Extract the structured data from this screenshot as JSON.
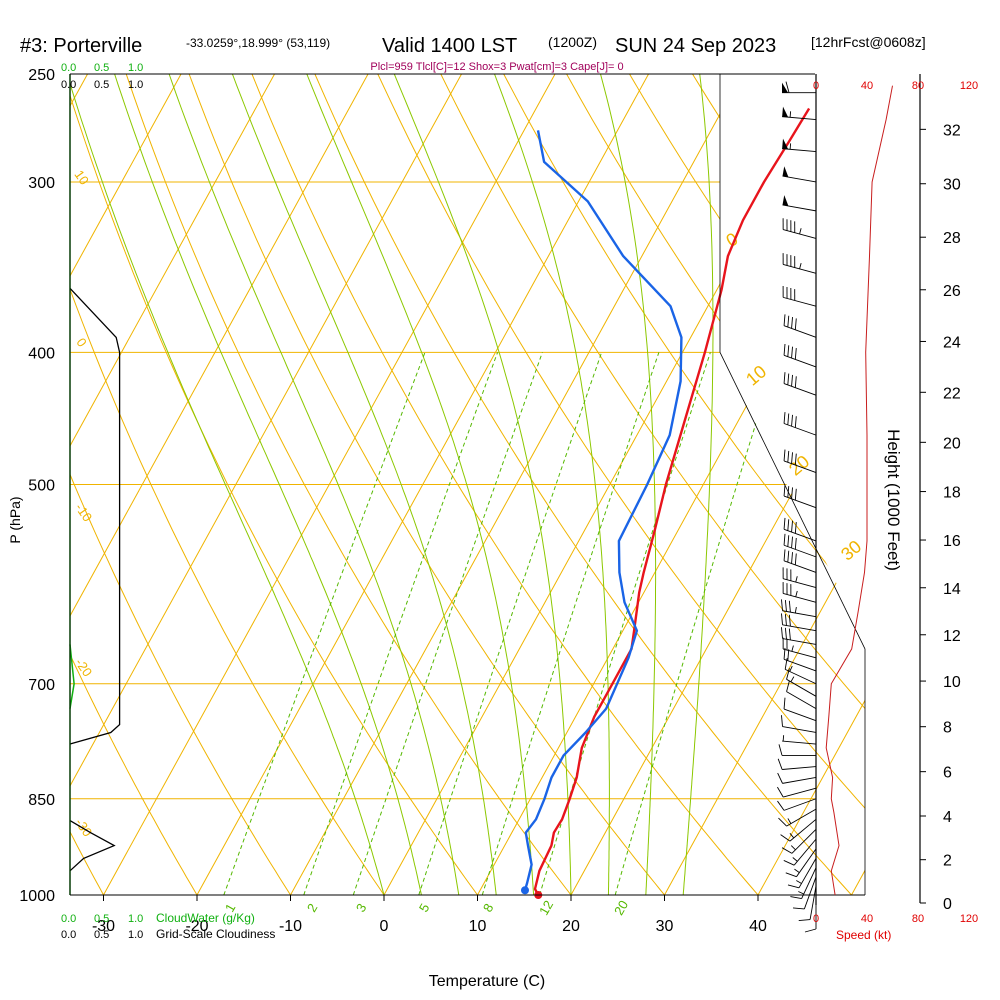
{
  "header": {
    "station": "#3: Porterville",
    "coords": "-33.0259°,18.999° (53,119)",
    "valid": "Valid 1400 LST",
    "utc": "(1200Z)",
    "date": "SUN 24 Sep 2023",
    "forecast": "[12hrFcst@0608z]",
    "indices": "Plcl=959 Tlcl[C]=12 Shox=3 Pwat[cm]=3 Cape[J]= 0"
  },
  "chart_data": {
    "type": "line",
    "title": "#3: Porterville",
    "xlabel": "Temperature (C)",
    "ylabel": "P (hPa)",
    "ylabel_right": "Height (1000 Feet)",
    "x_ticks": [
      "-30",
      "-20",
      "-10",
      "0",
      "10",
      "20",
      "30",
      "40"
    ],
    "p_ticks": [
      "250",
      "300",
      "400",
      "500",
      "700",
      "850",
      "1000"
    ],
    "height_ticks": [
      "0",
      "2",
      "4",
      "6",
      "8",
      "10",
      "12",
      "14",
      "16",
      "18",
      "20",
      "22",
      "24",
      "26",
      "28",
      "30",
      "32"
    ],
    "cloud_scale": {
      "top_green": [
        "0.0",
        "0.5",
        "1.0"
      ],
      "top_black": [
        "0.0",
        "0.5",
        "1.0"
      ],
      "bottom_green": [
        "0.0",
        "0.5",
        "1.0"
      ],
      "bottom_black": [
        "0.0",
        "0.5",
        "1.0"
      ],
      "green_label": "CloudWater (g/Kg)",
      "black_label": "Grid-Scale Cloudiness"
    },
    "speed_scale": {
      "ticks": [
        "0",
        "40",
        "80",
        "120"
      ],
      "label": "Speed (kt)"
    },
    "isotherm_labels": [
      "0",
      "10",
      "20",
      "30"
    ],
    "adiabat_labels": [
      "10",
      "0",
      "-10",
      "-20",
      "-30"
    ],
    "mixing_ratio_labels": [
      "1",
      "2",
      "3",
      "5",
      "8",
      "12",
      "20"
    ],
    "series": [
      {
        "name": "Temperature",
        "color": "#e8141c",
        "points": [
          [
            1000,
            16.5
          ],
          [
            990,
            15.8
          ],
          [
            960,
            15.2
          ],
          [
            920,
            15
          ],
          [
            900,
            14.5
          ],
          [
            880,
            14.6
          ],
          [
            850,
            14.2
          ],
          [
            820,
            13.7
          ],
          [
            780,
            12.5
          ],
          [
            740,
            12
          ],
          [
            700,
            12
          ],
          [
            660,
            12
          ],
          [
            640,
            11.2
          ],
          [
            600,
            9.5
          ],
          [
            580,
            8.8
          ],
          [
            540,
            7.5
          ],
          [
            500,
            6
          ],
          [
            450,
            4.3
          ],
          [
            400,
            2.4
          ],
          [
            360,
            0.5
          ],
          [
            340,
            -0.8
          ],
          [
            320,
            -1.3
          ],
          [
            300,
            -1.3
          ],
          [
            280,
            -1
          ],
          [
            265,
            -0.8
          ]
        ]
      },
      {
        "name": "Dewpoint",
        "color": "#1a64e6",
        "points": [
          [
            992,
            14.8
          ],
          [
            980,
            14.6
          ],
          [
            950,
            14
          ],
          [
            920,
            12.5
          ],
          [
            900,
            11.5
          ],
          [
            880,
            11.8
          ],
          [
            850,
            11.5
          ],
          [
            820,
            11
          ],
          [
            790,
            11
          ],
          [
            760,
            12
          ],
          [
            730,
            12.8
          ],
          [
            700,
            12.5
          ],
          [
            670,
            12.2
          ],
          [
            640,
            11.5
          ],
          [
            610,
            8.5
          ],
          [
            580,
            6.2
          ],
          [
            550,
            4.3
          ],
          [
            500,
            4
          ],
          [
            460,
            3.5
          ],
          [
            420,
            1.5
          ],
          [
            390,
            -1
          ],
          [
            370,
            -4
          ],
          [
            340,
            -12
          ],
          [
            310,
            -19
          ],
          [
            290,
            -26
          ],
          [
            275,
            -28.5
          ]
        ]
      }
    ],
    "cloudiness_profile": [
      [
        359,
        0
      ],
      [
        390,
        0.68
      ],
      [
        400,
        0.73
      ],
      [
        500,
        0.73
      ],
      [
        600,
        0.73
      ],
      [
        700,
        0.73
      ],
      [
        750,
        0.73
      ],
      [
        760,
        0.6
      ],
      [
        775,
        0
      ]
    ],
    "cloudwater_profile": [
      [
        655,
        0
      ],
      [
        700,
        0.06
      ],
      [
        730,
        0
      ]
    ],
    "low_cloudiness_profile": [
      [
        882,
        0
      ],
      [
        900,
        0.3
      ],
      [
        920,
        0.65
      ],
      [
        940,
        0.2
      ],
      [
        960,
        0
      ]
    ],
    "wind_profile": [
      [
        1000,
        15
      ],
      [
        960,
        12
      ],
      [
        920,
        18
      ],
      [
        870,
        14
      ],
      [
        850,
        12
      ],
      [
        820,
        13
      ],
      [
        780,
        8
      ],
      [
        740,
        10
      ],
      [
        700,
        12
      ],
      [
        660,
        28
      ],
      [
        620,
        33
      ],
      [
        580,
        38
      ],
      [
        550,
        40
      ],
      [
        500,
        40
      ],
      [
        460,
        40
      ],
      [
        400,
        39
      ],
      [
        340,
        42
      ],
      [
        300,
        44
      ],
      [
        270,
        55
      ],
      [
        255,
        60
      ]
    ],
    "wind_barbs": [
      {
        "p": 1000,
        "dir": 180,
        "spd": 10
      },
      {
        "p": 985,
        "dir": 190,
        "spd": 10
      },
      {
        "p": 970,
        "dir": 200,
        "spd": 10
      },
      {
        "p": 955,
        "dir": 205,
        "spd": 15
      },
      {
        "p": 940,
        "dir": 210,
        "spd": 15
      },
      {
        "p": 925,
        "dir": 215,
        "spd": 15
      },
      {
        "p": 910,
        "dir": 220,
        "spd": 15
      },
      {
        "p": 895,
        "dir": 225,
        "spd": 15
      },
      {
        "p": 880,
        "dir": 230,
        "spd": 15
      },
      {
        "p": 865,
        "dir": 240,
        "spd": 15
      },
      {
        "p": 850,
        "dir": 250,
        "spd": 10
      },
      {
        "p": 835,
        "dir": 255,
        "spd": 10
      },
      {
        "p": 820,
        "dir": 260,
        "spd": 10
      },
      {
        "p": 805,
        "dir": 265,
        "spd": 10
      },
      {
        "p": 790,
        "dir": 270,
        "spd": 10
      },
      {
        "p": 775,
        "dir": 275,
        "spd": 5
      },
      {
        "p": 760,
        "dir": 280,
        "spd": 10
      },
      {
        "p": 745,
        "dir": 290,
        "spd": 10
      },
      {
        "p": 730,
        "dir": 300,
        "spd": 10
      },
      {
        "p": 715,
        "dir": 300,
        "spd": 15
      },
      {
        "p": 700,
        "dir": 295,
        "spd": 15
      },
      {
        "p": 685,
        "dir": 290,
        "spd": 20
      },
      {
        "p": 670,
        "dir": 285,
        "spd": 25
      },
      {
        "p": 655,
        "dir": 280,
        "spd": 30
      },
      {
        "p": 640,
        "dir": 280,
        "spd": 30
      },
      {
        "p": 625,
        "dir": 280,
        "spd": 35
      },
      {
        "p": 610,
        "dir": 285,
        "spd": 35
      },
      {
        "p": 595,
        "dir": 285,
        "spd": 35
      },
      {
        "p": 580,
        "dir": 290,
        "spd": 40
      },
      {
        "p": 565,
        "dir": 290,
        "spd": 40
      },
      {
        "p": 550,
        "dir": 290,
        "spd": 40
      },
      {
        "p": 520,
        "dir": 290,
        "spd": 40
      },
      {
        "p": 490,
        "dir": 290,
        "spd": 40
      },
      {
        "p": 460,
        "dir": 290,
        "spd": 40
      },
      {
        "p": 430,
        "dir": 290,
        "spd": 40
      },
      {
        "p": 410,
        "dir": 290,
        "spd": 40
      },
      {
        "p": 390,
        "dir": 290,
        "spd": 40
      },
      {
        "p": 370,
        "dir": 285,
        "spd": 40
      },
      {
        "p": 350,
        "dir": 285,
        "spd": 45
      },
      {
        "p": 330,
        "dir": 285,
        "spd": 45
      },
      {
        "p": 315,
        "dir": 280,
        "spd": 50
      },
      {
        "p": 300,
        "dir": 280,
        "spd": 50
      },
      {
        "p": 285,
        "dir": 275,
        "spd": 55
      },
      {
        "p": 270,
        "dir": 275,
        "spd": 55
      },
      {
        "p": 258,
        "dir": 270,
        "spd": 60
      }
    ]
  }
}
